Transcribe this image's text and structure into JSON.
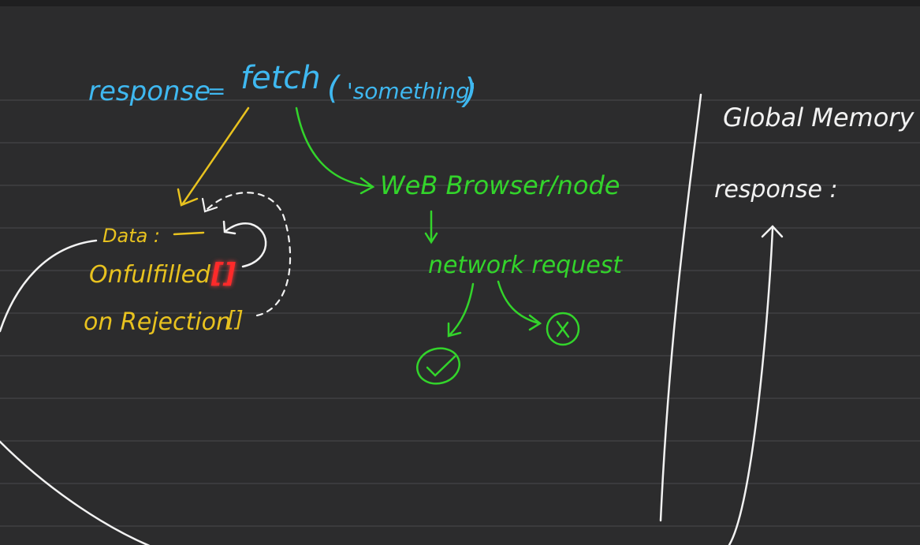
{
  "colors": {
    "background": "#2c2c2d",
    "rule_line": "#4a4a4c",
    "blue": "#3fb8f0",
    "yellow": "#e8c21f",
    "green": "#33d42b",
    "white": "#f2f2f2",
    "red": "#ff2a2a"
  },
  "code_line": {
    "response": "response",
    "equals": "=",
    "fetch": "fetch",
    "open_paren": "(",
    "argument": "'something'",
    "close_paren": ")"
  },
  "promise_object": {
    "data": "Data :",
    "onfulfilled": "Onfulfilled",
    "onfulfilled_bracket": "[]",
    "onrejection": "on Rejection",
    "onrejection_bracket": "[]"
  },
  "environment": {
    "web_browser": "WeB Browser/node",
    "network_request": "network request"
  },
  "global_memory": {
    "title": "Global Memory",
    "response_label": "response :"
  },
  "icons": [
    "check-circle-icon",
    "x-circle-icon"
  ]
}
